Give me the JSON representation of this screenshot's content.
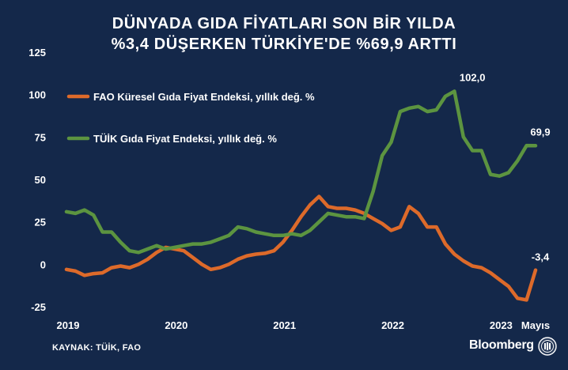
{
  "header": {
    "title_line1": "DÜNYADA GIDA FİYATLARI SON BİR YILDA",
    "title_line2": "%3,4 DÜŞERKEN TÜRKİYE'DE %69,9 ARTTI"
  },
  "footer": {
    "source": "KAYNAK: TÜİK, FAO",
    "brand": "Bloomberg"
  },
  "colors": {
    "background": "#14284a",
    "fao": "#dd6a2a",
    "tuik": "#5c9440",
    "text": "#ffffff"
  },
  "chart_data": {
    "type": "line",
    "title": "DÜNYADA GIDA FİYATLARI SON BİR YILDA %3,4 DÜŞERKEN TÜRKİYE'DE %69,9 ARTTI",
    "xlabel": "",
    "ylabel": "",
    "x_range": [
      "2019-01",
      "2023-05"
    ],
    "ylim": [
      -25,
      125
    ],
    "y_ticks": [
      -25,
      0,
      25,
      50,
      75,
      100,
      125
    ],
    "x_ticks": [
      {
        "x": "2019-01",
        "label": "2019"
      },
      {
        "x": "2020-01",
        "label": "2020"
      },
      {
        "x": "2021-01",
        "label": "2021"
      },
      {
        "x": "2022-01",
        "label": "2022"
      },
      {
        "x": "2023-01",
        "label": "2023"
      },
      {
        "x": "2023-05",
        "label": "Mayıs"
      }
    ],
    "grid": false,
    "legend_position": "top-left",
    "series": [
      {
        "name": "FAO Küresel Gıda Fiyat Endeksi, yıllık değ. %",
        "color": "#dd6a2a",
        "x": [
          "2019-01",
          "2019-02",
          "2019-03",
          "2019-04",
          "2019-05",
          "2019-06",
          "2019-07",
          "2019-08",
          "2019-09",
          "2019-10",
          "2019-11",
          "2019-12",
          "2020-01",
          "2020-02",
          "2020-03",
          "2020-04",
          "2020-05",
          "2020-06",
          "2020-07",
          "2020-08",
          "2020-09",
          "2020-10",
          "2020-11",
          "2020-12",
          "2021-01",
          "2021-02",
          "2021-03",
          "2021-04",
          "2021-05",
          "2021-06",
          "2021-07",
          "2021-08",
          "2021-09",
          "2021-10",
          "2021-11",
          "2021-12",
          "2022-01",
          "2022-02",
          "2022-03",
          "2022-04",
          "2022-05",
          "2022-06",
          "2022-07",
          "2022-08",
          "2022-09",
          "2022-10",
          "2022-11",
          "2022-12",
          "2023-01",
          "2023-02",
          "2023-03",
          "2023-04",
          "2023-05"
        ],
        "values": [
          -3,
          -4,
          -6.5,
          -5.5,
          -5,
          -2,
          -1,
          -2,
          0,
          3,
          7,
          10,
          9,
          8,
          4,
          0,
          -3,
          -2,
          0,
          3,
          5,
          6,
          6.5,
          8,
          13,
          20,
          28,
          35,
          40,
          34,
          33,
          33,
          32,
          30,
          27,
          24,
          20,
          22,
          34,
          30,
          22,
          22,
          12,
          6,
          2,
          -1,
          -2,
          -5,
          -9,
          -13,
          -20,
          -21,
          -3.4
        ]
      },
      {
        "name": "TÜİK Gıda Fiyat Endeksi, yıllık değ. %",
        "color": "#5c9440",
        "x": [
          "2019-01",
          "2019-02",
          "2019-03",
          "2019-04",
          "2019-05",
          "2019-06",
          "2019-07",
          "2019-08",
          "2019-09",
          "2019-10",
          "2019-11",
          "2019-12",
          "2020-01",
          "2020-02",
          "2020-03",
          "2020-04",
          "2020-05",
          "2020-06",
          "2020-07",
          "2020-08",
          "2020-09",
          "2020-10",
          "2020-11",
          "2020-12",
          "2021-01",
          "2021-02",
          "2021-03",
          "2021-04",
          "2021-05",
          "2021-06",
          "2021-07",
          "2021-08",
          "2021-09",
          "2021-10",
          "2021-11",
          "2021-12",
          "2022-01",
          "2022-02",
          "2022-03",
          "2022-04",
          "2022-05",
          "2022-06",
          "2022-07",
          "2022-08",
          "2022-09",
          "2022-10",
          "2022-11",
          "2022-12",
          "2023-01",
          "2023-02",
          "2023-03",
          "2023-04",
          "2023-05"
        ],
        "values": [
          31,
          30,
          32,
          29,
          19,
          19,
          13,
          8,
          7,
          9,
          11,
          9,
          10,
          11,
          12,
          12,
          13,
          15,
          17,
          22,
          21,
          19,
          18,
          17,
          17,
          18,
          17,
          20,
          25,
          30,
          29,
          28,
          28,
          27,
          43,
          64,
          72,
          90,
          92,
          93,
          90,
          91,
          99,
          102,
          75,
          67,
          67,
          53,
          52,
          54,
          61,
          70,
          69.9
        ]
      }
    ],
    "annotations": [
      {
        "x": "2022-10",
        "y": 102.0,
        "text": "102,0"
      },
      {
        "x": "2023-05",
        "y": 69.9,
        "text": "69,9"
      },
      {
        "x": "2023-05",
        "y": -3.4,
        "text": "-3,4"
      }
    ]
  }
}
